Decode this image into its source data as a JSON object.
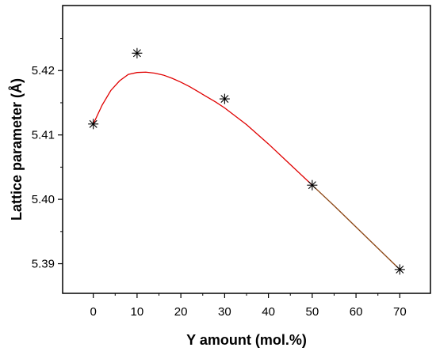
{
  "chart_data": {
    "type": "scatter",
    "title": "",
    "xlabel": "Y amount (mol.%)",
    "ylabel": "Lattice parameter (Å)",
    "xlim": [
      -7,
      77
    ],
    "ylim": [
      5.3854,
      5.4301
    ],
    "x_ticks": [
      0,
      10,
      20,
      30,
      40,
      50,
      60,
      70
    ],
    "y_ticks": [
      5.39,
      5.4,
      5.41,
      5.42
    ],
    "x_tick_labels": [
      "0",
      "10",
      "20",
      "30",
      "40",
      "50",
      "60",
      "70"
    ],
    "y_tick_labels": [
      "5.39",
      "5.40",
      "5.41",
      "5.42"
    ],
    "grid": false,
    "legend": "none",
    "series": [
      {
        "marker": "asterisk",
        "color": "#000000",
        "x": [
          0,
          10,
          30,
          50,
          70
        ],
        "y": [
          5.4117,
          5.4227,
          5.4156,
          5.4022,
          5.3891
        ]
      }
    ],
    "fit_curve": {
      "color": "#e00000",
      "end_color": "#8b4513",
      "x": [
        0,
        2,
        4,
        6,
        8,
        10,
        12,
        14,
        16,
        18,
        20,
        22,
        24,
        26,
        28,
        30,
        35,
        40,
        45,
        50,
        55,
        60,
        65,
        70
      ],
      "y": [
        5.4117,
        5.4146,
        5.4169,
        5.4184,
        5.4194,
        5.4197,
        5.41975,
        5.4196,
        5.4193,
        5.4188,
        5.4182,
        5.4175,
        5.4167,
        5.4159,
        5.4151,
        5.4142,
        5.4116,
        5.4086,
        5.4054,
        5.4022,
        5.399,
        5.3957,
        5.3924,
        5.3891
      ]
    }
  }
}
